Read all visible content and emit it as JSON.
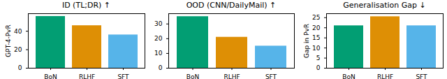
{
  "chart_data": [
    {
      "type": "bar",
      "title": "ID (TL;DR) ↑",
      "y_label": "GPT-4-PvR",
      "categories": [
        "BoN",
        "RLHF",
        "SFT"
      ],
      "values": [
        56,
        46,
        36
      ],
      "colors": [
        "#029e73",
        "#de8f05",
        "#56b4e9"
      ],
      "ylim": [
        0,
        59
      ],
      "yticks": [
        0,
        20,
        40
      ]
    },
    {
      "type": "bar",
      "title": "OOD (CNN/DailyMail) ↑",
      "categories": [
        "BoN",
        "RLHF",
        "SFT"
      ],
      "values": [
        35,
        21,
        15
      ],
      "colors": [
        "#029e73",
        "#de8f05",
        "#56b4e9"
      ],
      "ylim": [
        0,
        37
      ],
      "yticks": [
        0,
        10,
        20,
        30
      ]
    },
    {
      "type": "bar",
      "title": "Generalisation Gap ↓",
      "y_label": "Gap in PvR",
      "categories": [
        "BoN",
        "RLHF",
        "SFT"
      ],
      "values": [
        21,
        25.5,
        21
      ],
      "colors": [
        "#029e73",
        "#de8f05",
        "#56b4e9"
      ],
      "ylim": [
        0,
        27
      ],
      "yticks": [
        0,
        5,
        10,
        15,
        20,
        25
      ]
    }
  ]
}
